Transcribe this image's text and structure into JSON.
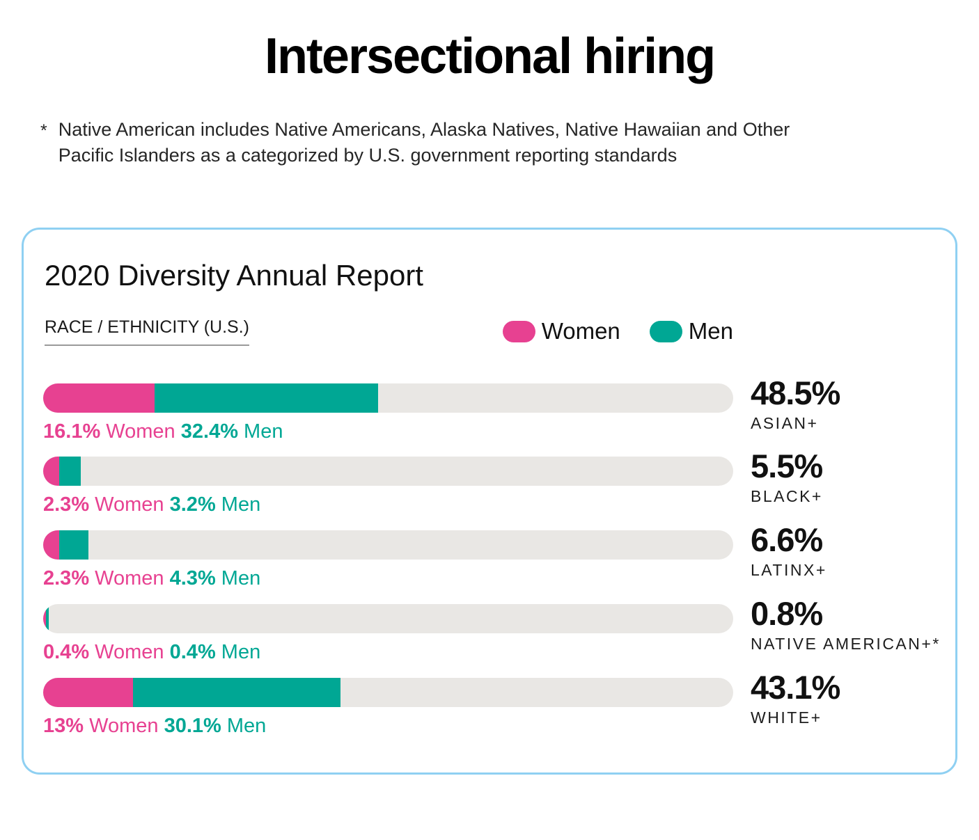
{
  "page": {
    "title": "Intersectional hiring",
    "footnote_marker": "*",
    "footnote_line1": "Native American includes Native Americans, Alaska Natives, Native Hawaiian and Other",
    "footnote_line2": "Pacific Islanders as a categorized by U.S. government reporting standards"
  },
  "card": {
    "heading": "2020 Diversity Annual Report",
    "section_label": "RACE / ETHNICITY (U.S.)"
  },
  "legend": {
    "women": {
      "label": "Women",
      "color": "#E74191"
    },
    "men": {
      "label": "Men",
      "color": "#00A794"
    }
  },
  "colors": {
    "women": "#E74191",
    "men": "#00A794",
    "track": "#E9E7E4",
    "card_border": "#8FD0F2"
  },
  "chart_data": {
    "type": "bar",
    "orientation": "horizontal",
    "stacked": true,
    "title": "2020 Diversity Annual Report",
    "section": "RACE / ETHNICITY (U.S.)",
    "series_names": [
      "Women",
      "Men"
    ],
    "legend_position": "top-right",
    "xlim": [
      0,
      100
    ],
    "grid": false,
    "rows": [
      {
        "category": "ASIAN+",
        "total_label": "48.5%",
        "total_pct": 48.5,
        "women_pct": 16.1,
        "women_label": "16.1%",
        "women_word": "Women",
        "men_pct": 32.4,
        "men_label": "32.4%",
        "men_word": "Men"
      },
      {
        "category": "BLACK+",
        "total_label": "5.5%",
        "total_pct": 5.5,
        "women_pct": 2.3,
        "women_label": "2.3%",
        "women_word": "Women",
        "men_pct": 3.2,
        "men_label": "3.2%",
        "men_word": "Men"
      },
      {
        "category": "LATINX+",
        "total_label": "6.6%",
        "total_pct": 6.6,
        "women_pct": 2.3,
        "women_label": "2.3%",
        "women_word": "Women",
        "men_pct": 4.3,
        "men_label": "4.3%",
        "men_word": "Men"
      },
      {
        "category": "NATIVE AMERICAN+*",
        "total_label": "0.8%",
        "total_pct": 0.8,
        "women_pct": 0.4,
        "women_label": "0.4%",
        "women_word": "Women",
        "men_pct": 0.4,
        "men_label": "0.4%",
        "men_word": "Men"
      },
      {
        "category": "WHITE+",
        "total_label": "43.1%",
        "total_pct": 43.1,
        "women_pct": 13,
        "women_label": "13%",
        "women_word": "Women",
        "men_pct": 30.1,
        "men_label": "30.1%",
        "men_word": "Men"
      }
    ]
  }
}
